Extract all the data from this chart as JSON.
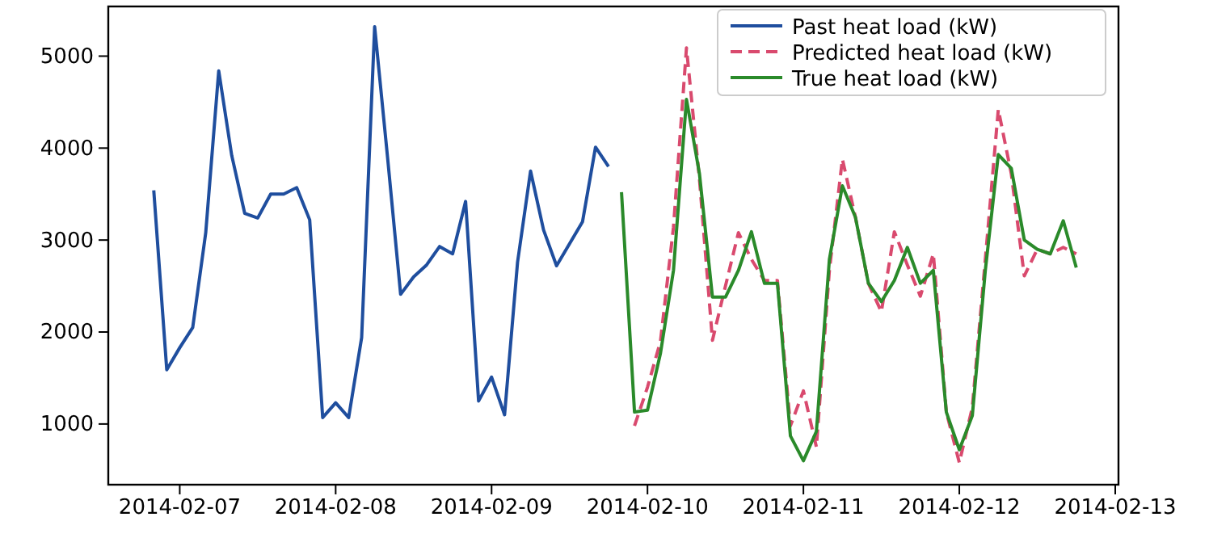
{
  "chart_data": {
    "type": "line",
    "xlim": [
      "2014-02-06T13:00",
      "2014-02-13T00:30"
    ],
    "ylim": [
      340,
      5540
    ],
    "xticks": [
      {
        "value": "2014-02-07",
        "label": "2014-02-07"
      },
      {
        "value": "2014-02-08",
        "label": "2014-02-08"
      },
      {
        "value": "2014-02-09",
        "label": "2014-02-09"
      },
      {
        "value": "2014-02-10",
        "label": "2014-02-10"
      },
      {
        "value": "2014-02-11",
        "label": "2014-02-11"
      },
      {
        "value": "2014-02-12",
        "label": "2014-02-12"
      },
      {
        "value": "2014-02-13",
        "label": "2014-02-13"
      }
    ],
    "yticks": [
      1000,
      2000,
      3000,
      4000,
      5000
    ],
    "legend": "top right",
    "series": [
      {
        "name": "Past heat load (kW)",
        "color": "#1f4e9e",
        "line_style": "solid",
        "x": [
          "2014-02-06T20:00",
          "2014-02-06T22:00",
          "2014-02-07T00:00",
          "2014-02-07T02:00",
          "2014-02-07T04:00",
          "2014-02-07T06:00",
          "2014-02-07T08:00",
          "2014-02-07T10:00",
          "2014-02-07T12:00",
          "2014-02-07T14:00",
          "2014-02-07T16:00",
          "2014-02-07T18:00",
          "2014-02-07T20:00",
          "2014-02-07T22:00",
          "2014-02-08T00:00",
          "2014-02-08T02:00",
          "2014-02-08T04:00",
          "2014-02-08T06:00",
          "2014-02-08T08:00",
          "2014-02-08T10:00",
          "2014-02-08T12:00",
          "2014-02-08T14:00",
          "2014-02-08T16:00",
          "2014-02-08T18:00",
          "2014-02-08T20:00",
          "2014-02-08T22:00",
          "2014-02-09T00:00",
          "2014-02-09T02:00",
          "2014-02-09T04:00",
          "2014-02-09T06:00",
          "2014-02-09T08:00",
          "2014-02-09T10:00",
          "2014-02-09T12:00",
          "2014-02-09T14:00",
          "2014-02-09T16:00",
          "2014-02-09T18:00"
        ],
        "values": [
          3540,
          1590,
          1830,
          2050,
          3080,
          4840,
          3920,
          3290,
          3240,
          3500,
          3500,
          3570,
          3220,
          1070,
          1230,
          1070,
          1940,
          5320,
          3890,
          2410,
          2600,
          2730,
          2930,
          2850,
          3420,
          1250,
          1510,
          1100,
          2760,
          3750,
          3110,
          2720,
          2960,
          3200,
          4010,
          3800
        ]
      },
      {
        "name": "Predicted heat load (kW)",
        "color": "#d94a6e",
        "line_style": "dashed",
        "x": [
          "2014-02-09T22:00",
          "2014-02-10T00:00",
          "2014-02-10T02:00",
          "2014-02-10T04:00",
          "2014-02-10T06:00",
          "2014-02-10T08:00",
          "2014-02-10T10:00",
          "2014-02-10T12:00",
          "2014-02-10T14:00",
          "2014-02-10T16:00",
          "2014-02-10T18:00",
          "2014-02-10T20:00",
          "2014-02-10T22:00",
          "2014-02-11T00:00",
          "2014-02-11T02:00",
          "2014-02-11T04:00",
          "2014-02-11T06:00",
          "2014-02-11T08:00",
          "2014-02-11T10:00",
          "2014-02-11T12:00",
          "2014-02-11T14:00",
          "2014-02-11T16:00",
          "2014-02-11T18:00",
          "2014-02-11T20:00",
          "2014-02-11T22:00",
          "2014-02-12T00:00",
          "2014-02-12T02:00",
          "2014-02-12T04:00",
          "2014-02-12T06:00",
          "2014-02-12T08:00",
          "2014-02-12T10:00",
          "2014-02-12T12:00",
          "2014-02-12T14:00",
          "2014-02-12T16:00",
          "2014-02-12T18:00"
        ],
        "values": [
          980,
          1400,
          1900,
          3140,
          5090,
          3660,
          1910,
          2500,
          3080,
          2790,
          2560,
          2560,
          980,
          1360,
          750,
          2670,
          3880,
          3250,
          2530,
          2220,
          3090,
          2730,
          2390,
          2850,
          1130,
          580,
          1180,
          2790,
          4420,
          3720,
          2610,
          2900,
          2850,
          2920,
          2850
        ]
      },
      {
        "name": "True heat load (kW)",
        "color": "#2a8a2a",
        "line_style": "solid",
        "x": [
          "2014-02-09T20:00",
          "2014-02-09T22:00",
          "2014-02-10T00:00",
          "2014-02-10T02:00",
          "2014-02-10T04:00",
          "2014-02-10T06:00",
          "2014-02-10T08:00",
          "2014-02-10T10:00",
          "2014-02-10T12:00",
          "2014-02-10T14:00",
          "2014-02-10T16:00",
          "2014-02-10T18:00",
          "2014-02-10T20:00",
          "2014-02-10T22:00",
          "2014-02-11T00:00",
          "2014-02-11T02:00",
          "2014-02-11T04:00",
          "2014-02-11T06:00",
          "2014-02-11T08:00",
          "2014-02-11T10:00",
          "2014-02-11T12:00",
          "2014-02-11T14:00",
          "2014-02-11T16:00",
          "2014-02-11T18:00",
          "2014-02-11T20:00",
          "2014-02-11T22:00",
          "2014-02-12T00:00",
          "2014-02-12T02:00",
          "2014-02-12T04:00",
          "2014-02-12T06:00",
          "2014-02-12T08:00",
          "2014-02-12T10:00",
          "2014-02-12T12:00",
          "2014-02-12T14:00",
          "2014-02-12T16:00",
          "2014-02-12T18:00"
        ],
        "values": [
          3520,
          1130,
          1150,
          1770,
          2670,
          4530,
          3720,
          2380,
          2380,
          2670,
          3090,
          2530,
          2530,
          870,
          600,
          920,
          2790,
          3590,
          3250,
          2530,
          2330,
          2560,
          2920,
          2530,
          2670,
          1130,
          720,
          1090,
          2670,
          3930,
          3780,
          3000,
          2900,
          2850,
          3210,
          2700
        ]
      }
    ]
  }
}
